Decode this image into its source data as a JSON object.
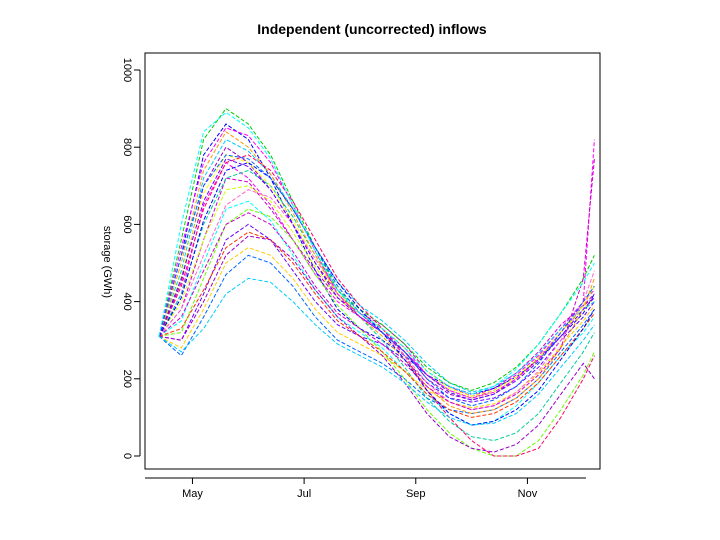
{
  "chart_data": {
    "type": "line",
    "title": "Independent (uncorrected) inflows",
    "xlabel": "",
    "ylabel": "storage (GWh)",
    "x_ticks": [
      "May",
      "Jul",
      "Sep",
      "Nov"
    ],
    "x_tick_month_index": [
      1,
      3,
      5,
      7
    ],
    "xlim_month_index": [
      0.15,
      8.3
    ],
    "ylim": [
      0,
      1000
    ],
    "y_ticks": [
      0,
      200,
      400,
      600,
      800,
      1000
    ],
    "y_tick_labels": [
      "0",
      "200",
      "400",
      "600",
      "800",
      "1000"
    ],
    "x_month_index": [
      0.4,
      0.8,
      1.2,
      1.6,
      2.0,
      2.4,
      2.8,
      3.2,
      3.6,
      4.0,
      4.4,
      4.8,
      5.2,
      5.6,
      6.0,
      6.4,
      6.8,
      7.2,
      7.6,
      8.0,
      8.2
    ],
    "grid": false,
    "legend": "none",
    "colors": [
      "#ff00ff",
      "#cc00cc",
      "#9900cc",
      "#6600ff",
      "#0000ff",
      "#0066ff",
      "#00ccff",
      "#00ffff",
      "#00cc99",
      "#00cc00",
      "#66ff00",
      "#ccff00",
      "#ffff00",
      "#ffcc00",
      "#ff9900",
      "#ff3300",
      "#ff0066",
      "#ff66cc"
    ],
    "series": [
      {
        "values": [
          310,
          420,
          650,
          760,
          720,
          650,
          560,
          470,
          400,
          360,
          330,
          280,
          210,
          170,
          150,
          170,
          210,
          260,
          330,
          400,
          430
        ]
      },
      {
        "values": [
          310,
          380,
          560,
          720,
          710,
          640,
          560,
          480,
          410,
          370,
          340,
          290,
          220,
          180,
          155,
          175,
          215,
          270,
          340,
          390,
          420
        ]
      },
      {
        "values": [
          310,
          450,
          700,
          800,
          760,
          690,
          600,
          500,
          420,
          370,
          330,
          270,
          200,
          160,
          145,
          160,
          200,
          255,
          320,
          390,
          410
        ]
      },
      {
        "values": [
          310,
          300,
          420,
          560,
          600,
          560,
          480,
          400,
          340,
          310,
          290,
          250,
          190,
          150,
          140,
          150,
          180,
          230,
          300,
          360,
          400
        ]
      },
      {
        "values": [
          310,
          520,
          780,
          860,
          820,
          720,
          600,
          480,
          380,
          330,
          300,
          260,
          210,
          180,
          160,
          175,
          205,
          250,
          310,
          370,
          420
        ]
      },
      {
        "values": [
          310,
          260,
          360,
          470,
          520,
          500,
          440,
          360,
          300,
          270,
          240,
          200,
          150,
          120,
          110,
          120,
          150,
          200,
          270,
          340,
          380
        ]
      },
      {
        "values": [
          310,
          480,
          720,
          820,
          790,
          730,
          640,
          540,
          450,
          390,
          350,
          300,
          240,
          190,
          165,
          180,
          215,
          265,
          330,
          380,
          400
        ]
      },
      {
        "values": [
          310,
          350,
          500,
          640,
          660,
          610,
          520,
          430,
          360,
          320,
          280,
          220,
          160,
          110,
          80,
          90,
          130,
          190,
          260,
          320,
          360
        ]
      },
      {
        "values": [
          310,
          420,
          600,
          720,
          740,
          700,
          620,
          520,
          430,
          360,
          300,
          230,
          150,
          90,
          50,
          40,
          60,
          110,
          190,
          270,
          320
        ]
      },
      {
        "values": [
          310,
          560,
          820,
          900,
          860,
          780,
          660,
          540,
          430,
          380,
          340,
          290,
          230,
          190,
          170,
          190,
          230,
          290,
          370,
          460,
          520
        ]
      },
      {
        "values": [
          310,
          320,
          460,
          600,
          640,
          620,
          560,
          470,
          390,
          330,
          270,
          200,
          120,
          60,
          20,
          0,
          0,
          40,
          120,
          210,
          270
        ]
      },
      {
        "values": [
          310,
          400,
          560,
          690,
          700,
          660,
          580,
          490,
          410,
          360,
          320,
          270,
          210,
          170,
          150,
          165,
          200,
          250,
          320,
          390,
          440
        ]
      },
      {
        "values": [
          310,
          470,
          680,
          780,
          760,
          700,
          610,
          510,
          420,
          370,
          330,
          280,
          220,
          175,
          155,
          170,
          205,
          255,
          320,
          380,
          410
        ]
      },
      {
        "values": [
          310,
          280,
          380,
          500,
          540,
          520,
          460,
          380,
          320,
          290,
          260,
          220,
          170,
          140,
          125,
          135,
          165,
          215,
          285,
          350,
          390
        ]
      },
      {
        "values": [
          310,
          500,
          740,
          840,
          800,
          730,
          630,
          520,
          420,
          360,
          310,
          250,
          180,
          130,
          110,
          120,
          150,
          200,
          280,
          380,
          460
        ]
      },
      {
        "values": [
          310,
          330,
          430,
          540,
          580,
          560,
          500,
          420,
          350,
          310,
          270,
          220,
          160,
          120,
          100,
          110,
          140,
          190,
          260,
          330,
          370
        ]
      },
      {
        "values": [
          310,
          440,
          640,
          760,
          780,
          740,
          660,
          560,
          460,
          390,
          330,
          260,
          170,
          100,
          40,
          0,
          0,
          20,
          100,
          200,
          260
        ]
      },
      {
        "values": [
          310,
          380,
          520,
          650,
          690,
          670,
          600,
          510,
          430,
          370,
          320,
          260,
          190,
          140,
          120,
          130,
          165,
          220,
          300,
          400,
          480
        ]
      },
      {
        "values": [
          310,
          540,
          760,
          850,
          830,
          760,
          650,
          530,
          420,
          360,
          320,
          270,
          210,
          170,
          150,
          165,
          200,
          250,
          320,
          400,
          820
        ]
      },
      {
        "values": [
          310,
          360,
          480,
          600,
          630,
          600,
          530,
          440,
          370,
          330,
          290,
          240,
          180,
          140,
          120,
          130,
          160,
          210,
          280,
          460,
          770
        ]
      },
      {
        "values": [
          310,
          300,
          400,
          520,
          570,
          560,
          510,
          430,
          360,
          310,
          260,
          190,
          110,
          50,
          20,
          10,
          30,
          80,
          160,
          240,
          200
        ]
      },
      {
        "values": [
          310,
          460,
          660,
          770,
          750,
          690,
          600,
          500,
          410,
          360,
          320,
          270,
          210,
          165,
          145,
          160,
          195,
          245,
          310,
          380,
          410
        ]
      },
      {
        "values": [
          310,
          410,
          610,
          740,
          760,
          720,
          640,
          540,
          450,
          380,
          320,
          250,
          170,
          110,
          80,
          90,
          120,
          170,
          250,
          330,
          380
        ]
      },
      {
        "values": [
          310,
          520,
          700,
          780,
          770,
          720,
          640,
          540,
          440,
          370,
          320,
          270,
          200,
          150,
          130,
          145,
          180,
          240,
          320,
          400,
          440
        ]
      },
      {
        "values": [
          310,
          270,
          330,
          420,
          460,
          450,
          400,
          340,
          290,
          260,
          230,
          190,
          140,
          100,
          80,
          85,
          110,
          160,
          230,
          300,
          340
        ]
      },
      {
        "values": [
          310,
          600,
          840,
          890,
          850,
          770,
          650,
          530,
          430,
          370,
          330,
          280,
          220,
          180,
          160,
          180,
          225,
          290,
          370,
          450,
          500
        ]
      }
    ]
  }
}
